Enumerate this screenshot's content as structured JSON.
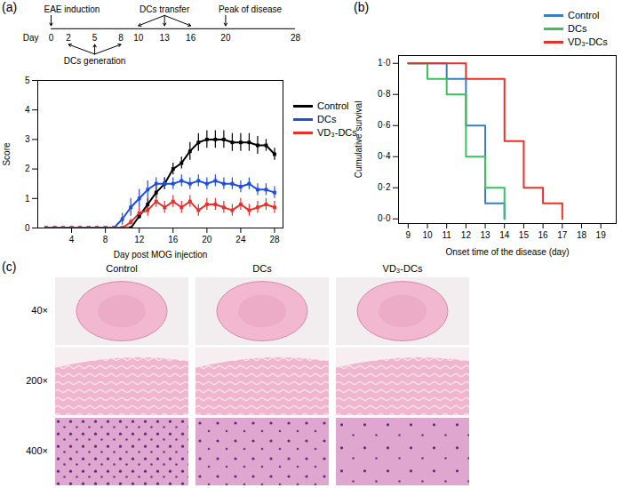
{
  "panel_labels": [
    "(a)",
    "(b)",
    "(c)"
  ],
  "timeline": {
    "axis_label": "Day",
    "xlim": [
      0,
      28
    ],
    "xticks": [
      0,
      2,
      5,
      8,
      10,
      13,
      16,
      20,
      28
    ],
    "above": [
      {
        "label": "EAE induction",
        "days": [
          0
        ]
      },
      {
        "label": "DCs transfer",
        "days": [
          10,
          13,
          16
        ]
      },
      {
        "label": "Peak of disease",
        "days": [
          20
        ]
      }
    ],
    "below": [
      {
        "label": "DCs generation",
        "days": [
          2,
          5,
          8
        ]
      }
    ]
  },
  "chart_data": [
    {
      "type": "line",
      "x_label": "Day post MOG injection",
      "y_label": "Score",
      "x": [
        1,
        2,
        3,
        4,
        5,
        6,
        7,
        8,
        9,
        10,
        11,
        12,
        13,
        14,
        15,
        16,
        17,
        18,
        19,
        20,
        21,
        22,
        23,
        24,
        25,
        26,
        27,
        28
      ],
      "xlim": [
        0,
        29
      ],
      "xticks": [
        4,
        8,
        12,
        16,
        20,
        24,
        28
      ],
      "ylim": [
        0,
        5
      ],
      "yticks": [
        0,
        1,
        2,
        3,
        4,
        5
      ],
      "grid": false,
      "legend": "right",
      "marker": "square",
      "series": [
        {
          "name": "Control",
          "color": "#000000",
          "values": [
            0,
            0,
            0,
            0,
            0,
            0,
            0,
            0,
            0,
            0,
            0,
            0.4,
            0.8,
            1.2,
            1.5,
            2.0,
            2.2,
            2.6,
            2.9,
            3.0,
            3.0,
            3.0,
            2.9,
            2.9,
            2.9,
            2.8,
            2.8,
            2.5
          ],
          "error": [
            0,
            0,
            0,
            0,
            0,
            0,
            0,
            0,
            0,
            0,
            0,
            0.1,
            0.2,
            0.2,
            0.2,
            0.2,
            0.2,
            0.3,
            0.3,
            0.3,
            0.3,
            0.3,
            0.3,
            0.3,
            0.3,
            0.3,
            0.2,
            0.2
          ]
        },
        {
          "name": "DCs",
          "color": "#1f4fe0",
          "values": [
            0,
            0,
            0,
            0,
            0,
            0,
            0,
            0,
            0,
            0.3,
            0.7,
            1.0,
            1.3,
            1.5,
            1.5,
            1.5,
            1.6,
            1.5,
            1.6,
            1.5,
            1.6,
            1.5,
            1.5,
            1.4,
            1.5,
            1.3,
            1.3,
            1.2
          ],
          "error": [
            0,
            0,
            0,
            0,
            0,
            0,
            0,
            0,
            0,
            0.2,
            0.3,
            0.3,
            0.3,
            0.2,
            0.2,
            0.2,
            0.2,
            0.2,
            0.2,
            0.2,
            0.2,
            0.2,
            0.2,
            0.2,
            0.2,
            0.2,
            0.2,
            0.2
          ]
        },
        {
          "name": "VD₃-DCs",
          "color": "#e8302a",
          "values": [
            0,
            0,
            0,
            0,
            0,
            0,
            0,
            0,
            0,
            0,
            0.2,
            0.5,
            0.6,
            0.9,
            0.7,
            0.9,
            0.7,
            0.9,
            0.6,
            0.8,
            0.8,
            0.7,
            0.6,
            0.8,
            0.6,
            0.7,
            0.8,
            0.7
          ],
          "error": [
            0,
            0,
            0,
            0,
            0,
            0,
            0,
            0,
            0,
            0,
            0.1,
            0.2,
            0.2,
            0.2,
            0.2,
            0.2,
            0.2,
            0.2,
            0.2,
            0.2,
            0.2,
            0.2,
            0.2,
            0.2,
            0.2,
            0.2,
            0.2,
            0.2
          ]
        }
      ]
    },
    {
      "type": "line",
      "x_label": "Onset time of the disease (day)",
      "y_label": "Cumulative survival",
      "xlim": [
        8.5,
        19.8
      ],
      "xticks": [
        9,
        10,
        11,
        12,
        13,
        14,
        15,
        16,
        17,
        18,
        19
      ],
      "ylim": [
        -0.03,
        1.05
      ],
      "yticks": [
        {
          "value": 0,
          "label": "0·0"
        },
        {
          "value": 0.2,
          "label": "0·2"
        },
        {
          "value": 0.4,
          "label": "0·4"
        },
        {
          "value": 0.6,
          "label": "0·6"
        },
        {
          "value": 0.8,
          "label": "0·8"
        },
        {
          "value": 1,
          "label": "1·0"
        }
      ],
      "grid": false,
      "legend": "top-right",
      "line_style": "step",
      "series": [
        {
          "name": "Control",
          "color": "#3b7dc4",
          "x": [
            9,
            11,
            12,
            13,
            14
          ],
          "values": [
            1,
            0.9,
            0.6,
            0.1,
            0
          ]
        },
        {
          "name": "DCs",
          "color": "#3dbf5f",
          "x": [
            9,
            10,
            11,
            12,
            13,
            14
          ],
          "values": [
            1,
            0.9,
            0.8,
            0.4,
            0.2,
            0
          ]
        },
        {
          "name": "VD₃-DCs",
          "color": "#e8302a",
          "x": [
            9,
            12,
            14,
            15,
            16,
            17
          ],
          "values": [
            1,
            0.9,
            0.5,
            0.2,
            0.1,
            0
          ]
        }
      ]
    }
  ],
  "histology": {
    "columns": [
      "Control",
      "DCs",
      "VD₃-DCs"
    ],
    "rows": [
      "40×",
      "200×",
      "400×"
    ]
  }
}
